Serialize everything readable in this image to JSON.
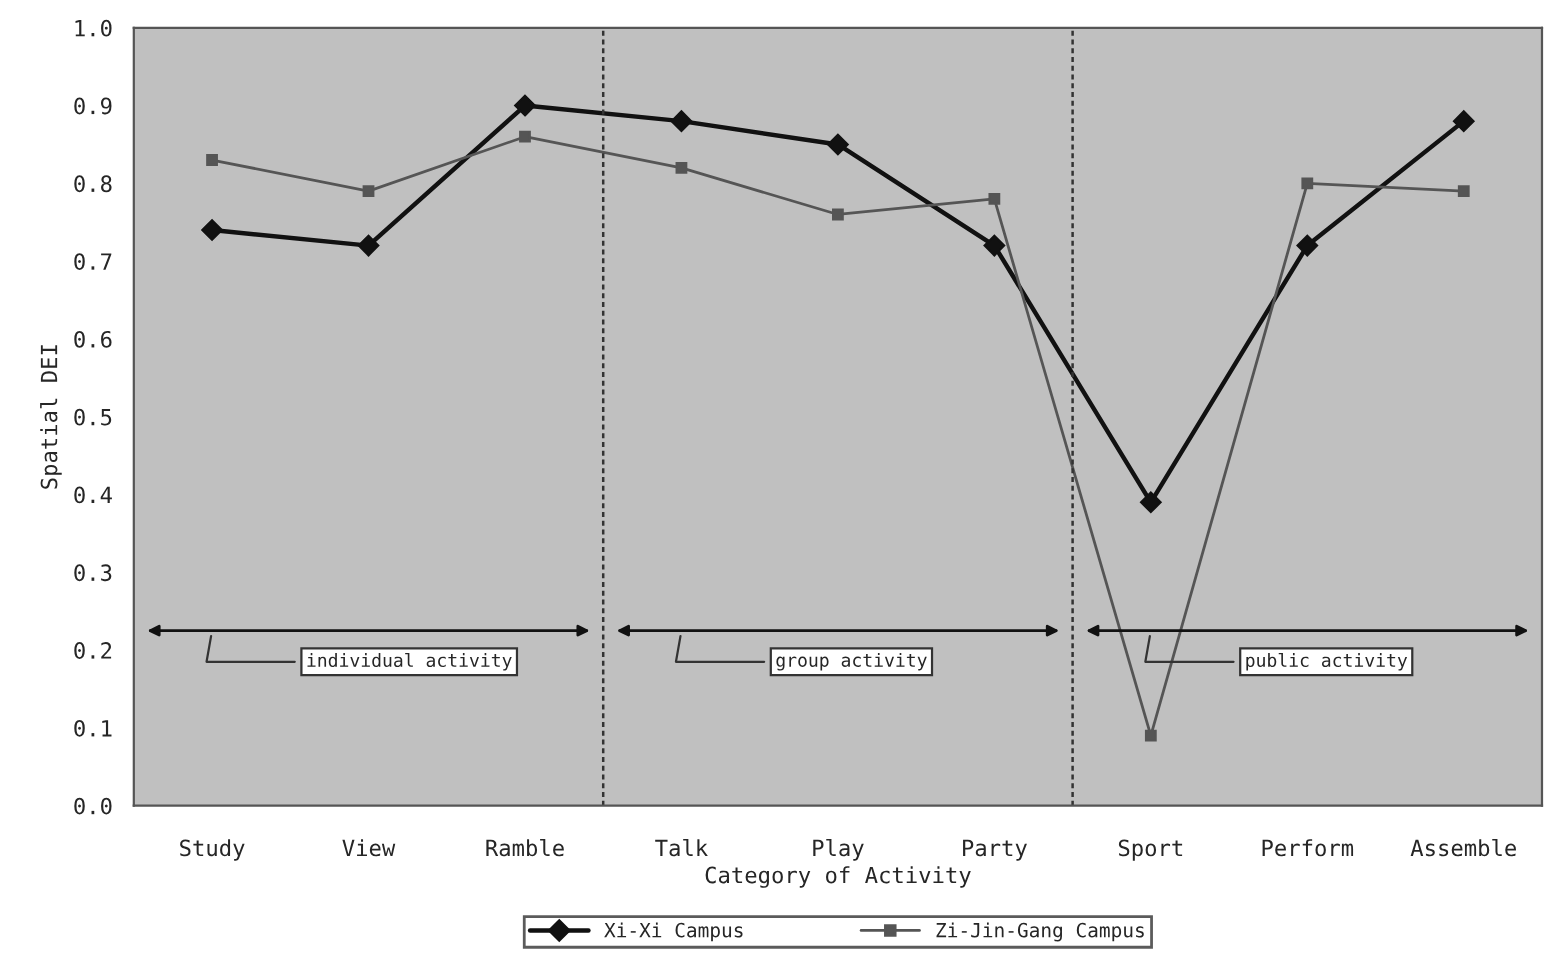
{
  "chart_data": {
    "type": "line",
    "xlabel": "Category of Activity",
    "ylabel": "Spatial DEI",
    "categories": [
      "Study",
      "View",
      "Ramble",
      "Talk",
      "Play",
      "Party",
      "Sport",
      "Perform",
      "Assemble"
    ],
    "series": [
      {
        "name": "Xi-Xi Campus",
        "color": "#111111",
        "marker": "diamond",
        "values": [
          0.74,
          0.72,
          0.9,
          0.88,
          0.85,
          0.72,
          0.39,
          0.72,
          0.88
        ]
      },
      {
        "name": "Zi-Jin-Gang Campus",
        "color": "#555555",
        "marker": "square",
        "values": [
          0.83,
          0.79,
          0.86,
          0.82,
          0.76,
          0.78,
          0.09,
          0.8,
          0.79
        ]
      }
    ],
    "ylim": [
      0,
      1
    ],
    "yticks": [
      {
        "value": 0,
        "label": "0.0"
      },
      0.1,
      0.2,
      0.3,
      0.4,
      0.5,
      0.6,
      0.7,
      0.8,
      0.9,
      {
        "value": 1,
        "label": "1.0"
      }
    ],
    "annotations": [
      "individual activity",
      "group activity",
      "public activity"
    ],
    "grid": false,
    "legend": "bottom",
    "line_style": "solid"
  }
}
